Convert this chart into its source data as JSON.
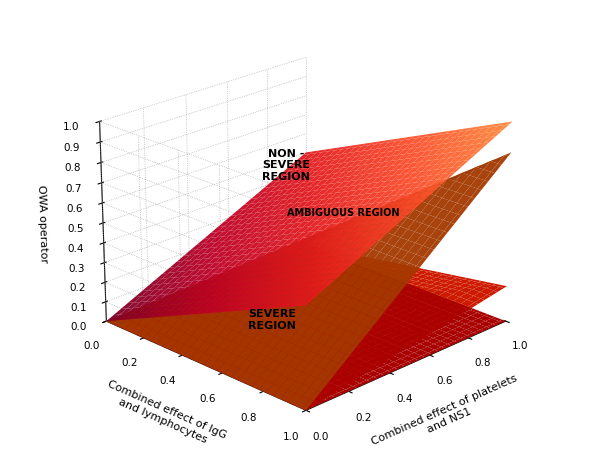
{
  "xlabel": "Combined effect of platelets\nand NS1",
  "ylabel": "Combined effect of IgG\nand lymphocytes",
  "zlabel": "OWA operator",
  "xticks": [
    0,
    0.2,
    0.4,
    0.6,
    0.8,
    1
  ],
  "yticks": [
    0,
    0.2,
    0.4,
    0.6,
    0.8,
    1
  ],
  "zticks": [
    0,
    0.1,
    0.2,
    0.3,
    0.4,
    0.5,
    0.6,
    0.7,
    0.8,
    0.9,
    1
  ],
  "non_severe_text": "NON -\nSEVERE\nREGION",
  "severe_text": "SEVERE\nREGION",
  "annotation_text": "AMBIGUOUS REGION",
  "elev": 22,
  "azim": -135
}
